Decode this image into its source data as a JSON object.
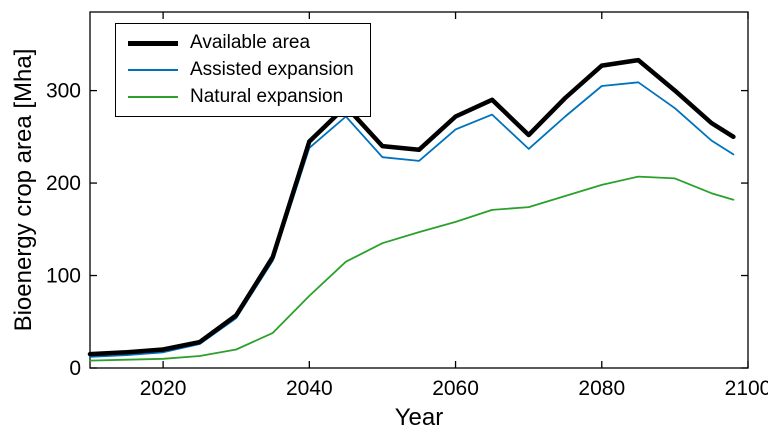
{
  "chart_data": {
    "type": "line",
    "title": "",
    "xlabel": "Year",
    "ylabel": "Bioenergy crop area [Mha]",
    "xlim": [
      2010,
      2100
    ],
    "ylim": [
      0,
      385
    ],
    "xticks": [
      2020,
      2040,
      2060,
      2080,
      2100
    ],
    "yticks": [
      0,
      100,
      200,
      300
    ],
    "grid": false,
    "legend_position": "top-left",
    "x": [
      2010,
      2015,
      2020,
      2025,
      2030,
      2035,
      2040,
      2045,
      2050,
      2055,
      2060,
      2065,
      2070,
      2075,
      2080,
      2085,
      2090,
      2095,
      2098
    ],
    "series": [
      {
        "name": "Available area",
        "color": "#000000",
        "width": 4.5,
        "values": [
          15,
          17,
          20,
          28,
          57,
          120,
          245,
          283,
          240,
          236,
          272,
          290,
          252,
          292,
          327,
          333,
          300,
          265,
          250
        ]
      },
      {
        "name": "Assisted expansion",
        "color": "#0072BD",
        "width": 1.8,
        "values": [
          12,
          14,
          17,
          26,
          54,
          116,
          238,
          272,
          228,
          224,
          258,
          274,
          237,
          272,
          305,
          309,
          281,
          246,
          231
        ]
      },
      {
        "name": "Natural expansion",
        "color": "#2CA02C",
        "width": 1.8,
        "values": [
          8,
          9,
          10,
          13,
          20,
          38,
          78,
          115,
          135,
          147,
          158,
          171,
          174,
          186,
          198,
          207,
          205,
          189,
          182
        ]
      }
    ]
  }
}
